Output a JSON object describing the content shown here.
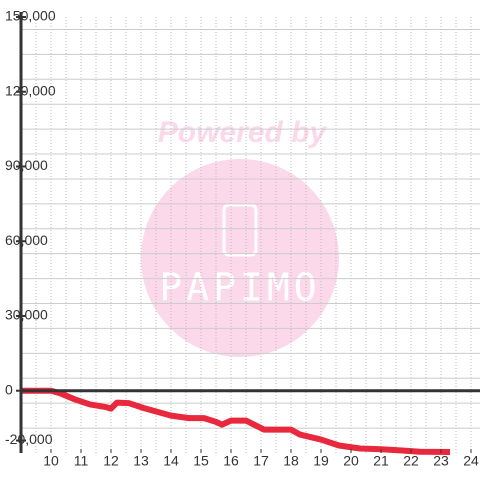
{
  "chart_data": {
    "type": "line",
    "watermark": {
      "top": "Powered by",
      "bottom": "PAPIMO"
    },
    "xlim": [
      9,
      24.3
    ],
    "xticks": [
      10,
      11,
      12,
      13,
      14,
      15,
      16,
      17,
      18,
      19,
      20,
      21,
      22,
      23,
      24
    ],
    "xgrid_step": 0.5,
    "ylim": [
      -25000,
      150000
    ],
    "yticks": [
      {
        "value": -20000,
        "label": "-20,000"
      },
      0,
      {
        "value": 30000,
        "label": "30,000"
      },
      {
        "value": 60000,
        "label": "60,000"
      },
      {
        "value": 90000,
        "label": "90,000"
      },
      {
        "value": 120000,
        "label": "120,000"
      },
      {
        "value": 150000,
        "label": "150,000"
      }
    ],
    "ygrid_step": 10000,
    "grid": true,
    "series": [
      {
        "color": "#e8283c",
        "x": [
          9,
          10,
          10.3,
          10.8,
          11.3,
          11.8,
          12.0,
          12.2,
          12.6,
          13.1,
          14.0,
          14.6,
          15.1,
          15.5,
          15.7,
          16.0,
          16.5,
          17.1,
          18.0,
          18.3,
          19.0,
          19.6,
          20.3,
          21.0,
          21.7,
          22.3,
          23.3
        ],
        "values": [
          0,
          0,
          -1000,
          -3500,
          -5500,
          -6500,
          -7200,
          -4800,
          -5000,
          -7000,
          -10000,
          -11000,
          -11000,
          -12500,
          -13600,
          -12000,
          -12000,
          -15600,
          -15600,
          -17600,
          -19600,
          -22000,
          -23200,
          -23500,
          -24000,
          -24500,
          -24600
        ]
      }
    ]
  }
}
